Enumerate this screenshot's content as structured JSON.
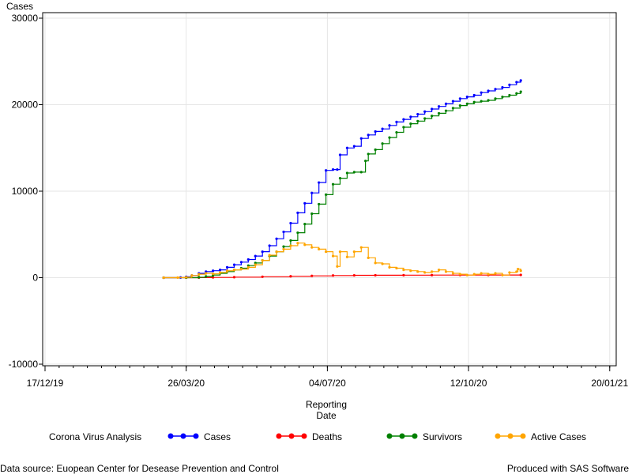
{
  "chart_data": {
    "type": "line",
    "ylabel": "Cases",
    "xlabel_lines": [
      "Reporting",
      "Date"
    ],
    "ylim": [
      -10000,
      30000
    ],
    "yticks": [
      -10000,
      0,
      10000,
      20000,
      30000
    ],
    "ytick_labels": [
      "-10000",
      "0",
      "10000",
      "20000",
      "30000"
    ],
    "xlim_days": [
      -14,
      385
    ],
    "xticks": [
      {
        "label": "17/12/19",
        "day": -14
      },
      {
        "label": "26/03/20",
        "day": 86
      },
      {
        "label": "04/07/20",
        "day": 186
      },
      {
        "label": "12/10/20",
        "day": 286
      },
      {
        "label": "20/01/21",
        "day": 386
      }
    ],
    "x_day_zero": "2019-12-31",
    "grid": true,
    "legend": {
      "title": "Corona Virus Analysis",
      "placement": "bottom"
    },
    "series": [
      {
        "name": "Cases",
        "color": "#0000ff",
        "points": [
          [
            70,
            0
          ],
          [
            82,
            20
          ],
          [
            86,
            100
          ],
          [
            90,
            250
          ],
          [
            95,
            500
          ],
          [
            100,
            700
          ],
          [
            105,
            800
          ],
          [
            110,
            900
          ],
          [
            115,
            1200
          ],
          [
            120,
            1500
          ],
          [
            125,
            1800
          ],
          [
            130,
            2100
          ],
          [
            135,
            2500
          ],
          [
            140,
            3000
          ],
          [
            145,
            3700
          ],
          [
            150,
            4500
          ],
          [
            155,
            5300
          ],
          [
            160,
            6300
          ],
          [
            165,
            7500
          ],
          [
            170,
            8600
          ],
          [
            175,
            9800
          ],
          [
            180,
            11000
          ],
          [
            185,
            12400
          ],
          [
            190,
            12500
          ],
          [
            193,
            12500
          ],
          [
            195,
            14200
          ],
          [
            200,
            15000
          ],
          [
            205,
            15200
          ],
          [
            210,
            16100
          ],
          [
            215,
            16500
          ],
          [
            220,
            16900
          ],
          [
            225,
            17200
          ],
          [
            230,
            17600
          ],
          [
            235,
            18000
          ],
          [
            240,
            18300
          ],
          [
            245,
            18600
          ],
          [
            250,
            18900
          ],
          [
            255,
            19200
          ],
          [
            260,
            19500
          ],
          [
            265,
            19800
          ],
          [
            270,
            20100
          ],
          [
            275,
            20400
          ],
          [
            280,
            20700
          ],
          [
            285,
            20900
          ],
          [
            290,
            21100
          ],
          [
            295,
            21400
          ],
          [
            300,
            21600
          ],
          [
            305,
            21800
          ],
          [
            310,
            22000
          ],
          [
            315,
            22300
          ],
          [
            320,
            22600
          ],
          [
            323,
            22800
          ]
        ]
      },
      {
        "name": "Deaths",
        "color": "#ff0000",
        "points": [
          [
            70,
            0
          ],
          [
            86,
            0
          ],
          [
            95,
            10
          ],
          [
            105,
            30
          ],
          [
            120,
            60
          ],
          [
            140,
            110
          ],
          [
            160,
            160
          ],
          [
            175,
            210
          ],
          [
            190,
            250
          ],
          [
            205,
            270
          ],
          [
            220,
            280
          ],
          [
            240,
            290
          ],
          [
            260,
            300
          ],
          [
            280,
            305
          ],
          [
            300,
            310
          ],
          [
            323,
            320
          ]
        ]
      },
      {
        "name": "Survivors",
        "color": "#008000",
        "points": [
          [
            70,
            0
          ],
          [
            86,
            0
          ],
          [
            95,
            50
          ],
          [
            100,
            150
          ],
          [
            105,
            300
          ],
          [
            110,
            500
          ],
          [
            115,
            700
          ],
          [
            120,
            900
          ],
          [
            125,
            1100
          ],
          [
            130,
            1400
          ],
          [
            135,
            1700
          ],
          [
            140,
            2000
          ],
          [
            145,
            2500
          ],
          [
            150,
            3000
          ],
          [
            155,
            3600
          ],
          [
            160,
            4300
          ],
          [
            165,
            5200
          ],
          [
            170,
            6200
          ],
          [
            175,
            7400
          ],
          [
            180,
            8500
          ],
          [
            185,
            9600
          ],
          [
            190,
            10800
          ],
          [
            195,
            11500
          ],
          [
            200,
            12100
          ],
          [
            205,
            12200
          ],
          [
            210,
            12200
          ],
          [
            213,
            13500
          ],
          [
            215,
            14300
          ],
          [
            220,
            14800
          ],
          [
            225,
            15500
          ],
          [
            230,
            16200
          ],
          [
            235,
            16800
          ],
          [
            240,
            17400
          ],
          [
            245,
            17800
          ],
          [
            250,
            18100
          ],
          [
            255,
            18400
          ],
          [
            260,
            18700
          ],
          [
            265,
            19000
          ],
          [
            270,
            19300
          ],
          [
            275,
            19600
          ],
          [
            280,
            19900
          ],
          [
            285,
            20100
          ],
          [
            290,
            20300
          ],
          [
            295,
            20400
          ],
          [
            300,
            20500
          ],
          [
            305,
            20700
          ],
          [
            310,
            20900
          ],
          [
            315,
            21100
          ],
          [
            320,
            21300
          ],
          [
            323,
            21500
          ]
        ]
      },
      {
        "name": "Active Cases",
        "color": "#ffa500",
        "points": [
          [
            70,
            0
          ],
          [
            80,
            10
          ],
          [
            86,
            50
          ],
          [
            90,
            250
          ],
          [
            95,
            400
          ],
          [
            100,
            500
          ],
          [
            105,
            450
          ],
          [
            110,
            600
          ],
          [
            115,
            800
          ],
          [
            120,
            900
          ],
          [
            125,
            1000
          ],
          [
            130,
            1200
          ],
          [
            135,
            1500
          ],
          [
            140,
            2000
          ],
          [
            145,
            2600
          ],
          [
            150,
            3000
          ],
          [
            155,
            3300
          ],
          [
            160,
            3700
          ],
          [
            165,
            4000
          ],
          [
            170,
            3800
          ],
          [
            175,
            3500
          ],
          [
            180,
            3300
          ],
          [
            185,
            3000
          ],
          [
            190,
            2500
          ],
          [
            193,
            1300
          ],
          [
            195,
            3000
          ],
          [
            200,
            2400
          ],
          [
            205,
            3000
          ],
          [
            210,
            3500
          ],
          [
            215,
            2300
          ],
          [
            220,
            1700
          ],
          [
            225,
            1600
          ],
          [
            230,
            1200
          ],
          [
            235,
            1100
          ],
          [
            240,
            900
          ],
          [
            245,
            800
          ],
          [
            250,
            700
          ],
          [
            255,
            600
          ],
          [
            260,
            700
          ],
          [
            265,
            900
          ],
          [
            270,
            700
          ],
          [
            275,
            500
          ],
          [
            280,
            400
          ],
          [
            285,
            300
          ],
          [
            290,
            400
          ],
          [
            295,
            500
          ],
          [
            300,
            400
          ],
          [
            305,
            500
          ],
          [
            310,
            300
          ],
          [
            315,
            600
          ],
          [
            320,
            700
          ],
          [
            321,
            1000
          ],
          [
            323,
            800
          ]
        ]
      }
    ]
  },
  "footer": {
    "left": "Data source: Euopean Center for Desease Prevention and Control",
    "right": "Produced with SAS Software"
  }
}
